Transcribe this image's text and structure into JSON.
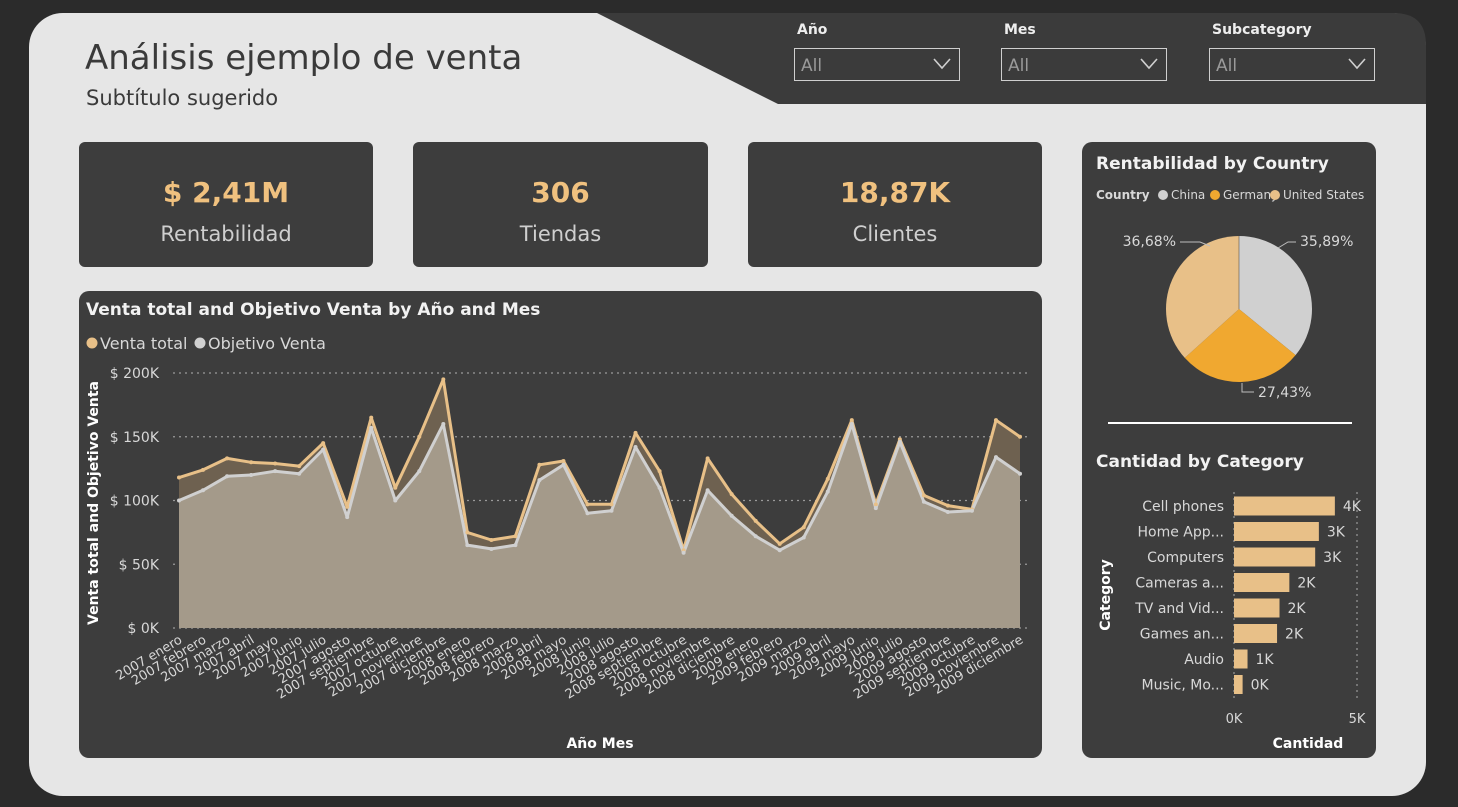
{
  "header": {
    "title": "Análisis ejemplo de venta",
    "subtitle": "Subtítulo sugerido"
  },
  "filters": [
    {
      "label": "Año",
      "value": "All"
    },
    {
      "label": "Mes",
      "value": "All"
    },
    {
      "label": "Subcategory",
      "value": "All"
    }
  ],
  "kpis": [
    {
      "value": "$ 2,41M",
      "label": "Rentabilidad"
    },
    {
      "value": "306",
      "label": "Tiendas"
    },
    {
      "value": "18,87K",
      "label": "Clientes"
    }
  ],
  "colors": {
    "gold": "#e8c088",
    "silver": "#d0d0d0",
    "orange": "#f0a830",
    "panel": "#3d3d3d",
    "canvas": "#e6e6e6"
  },
  "chart_data": [
    {
      "type": "area",
      "title": "Venta total and Objetivo Venta by Año and Mes",
      "xlabel": "Año Mes",
      "ylabel": "Venta total and Objetivo Venta",
      "legend_position": "top-left",
      "grid": true,
      "ylim": [
        0,
        200000
      ],
      "y_ticks": [
        0,
        50000,
        100000,
        150000,
        200000
      ],
      "y_tick_labels": [
        "$ 0K",
        "$ 50K",
        "$ 100K",
        "$ 150K",
        "$ 200K"
      ],
      "categories": [
        "2007 enero",
        "2007 febrero",
        "2007 marzo",
        "2007 abril",
        "2007 mayo",
        "2007 junio",
        "2007 julio",
        "2007 agosto",
        "2007 septiembre",
        "2007 octubre",
        "2007 noviembre",
        "2007 diciembre",
        "2008 enero",
        "2008 febrero",
        "2008 marzo",
        "2008 abril",
        "2008 mayo",
        "2008 junio",
        "2008 julio",
        "2008 agosto",
        "2008 septiembre",
        "2008 octubre",
        "2008 noviembre",
        "2008 diciembre",
        "2009 enero",
        "2009 febrero",
        "2009 marzo",
        "2009 abril",
        "2009 mayo",
        "2009 junio",
        "2009 julio",
        "2009 agosto",
        "2009 septiembre",
        "2009 octubre",
        "2009 noviembre",
        "2009 diciembre"
      ],
      "series": [
        {
          "name": "Venta total",
          "values": [
            118000,
            124000,
            133000,
            130000,
            129000,
            127000,
            145000,
            95000,
            165000,
            110000,
            150000,
            195000,
            75000,
            69000,
            72000,
            128000,
            131000,
            97000,
            97000,
            153000,
            123000,
            61000,
            133000,
            105000,
            84000,
            66000,
            79000,
            117000,
            163000,
            97000,
            148000,
            104000,
            96000,
            93000,
            163000,
            150000
          ]
        },
        {
          "name": "Objetivo Venta",
          "values": [
            100000,
            108000,
            119000,
            120000,
            123000,
            121000,
            140000,
            87000,
            157000,
            100000,
            123000,
            160000,
            65000,
            62000,
            65000,
            116000,
            128000,
            90000,
            92000,
            142000,
            110000,
            59000,
            108000,
            88000,
            72000,
            61000,
            71000,
            107000,
            160000,
            94000,
            146000,
            99000,
            91000,
            92000,
            134000,
            121000
          ]
        }
      ]
    },
    {
      "type": "pie",
      "title": "Rentabilidad by Country",
      "legend_title": "Country",
      "legend_position": "top",
      "categories": [
        "China",
        "Germany",
        "United States"
      ],
      "values": [
        35.89,
        27.43,
        36.68
      ],
      "value_labels": [
        "35,89%",
        "27,43%",
        "36,68%"
      ]
    },
    {
      "type": "bar",
      "orientation": "horizontal",
      "title": "Cantidad by Category",
      "xlabel": "Cantidad",
      "ylabel": "Category",
      "xlim": [
        0,
        5000
      ],
      "x_tick_labels": [
        "0K",
        "5K"
      ],
      "categories": [
        "Cell phones",
        "Home App...",
        "Computers",
        "Cameras a...",
        "TV and Vid...",
        "Games an...",
        "Audio",
        "Music, Mo..."
      ],
      "values": [
        4100,
        3450,
        3300,
        2250,
        1850,
        1750,
        550,
        350
      ],
      "value_labels": [
        "4K",
        "3K",
        "3K",
        "2K",
        "2K",
        "2K",
        "1K",
        "0K"
      ]
    }
  ]
}
